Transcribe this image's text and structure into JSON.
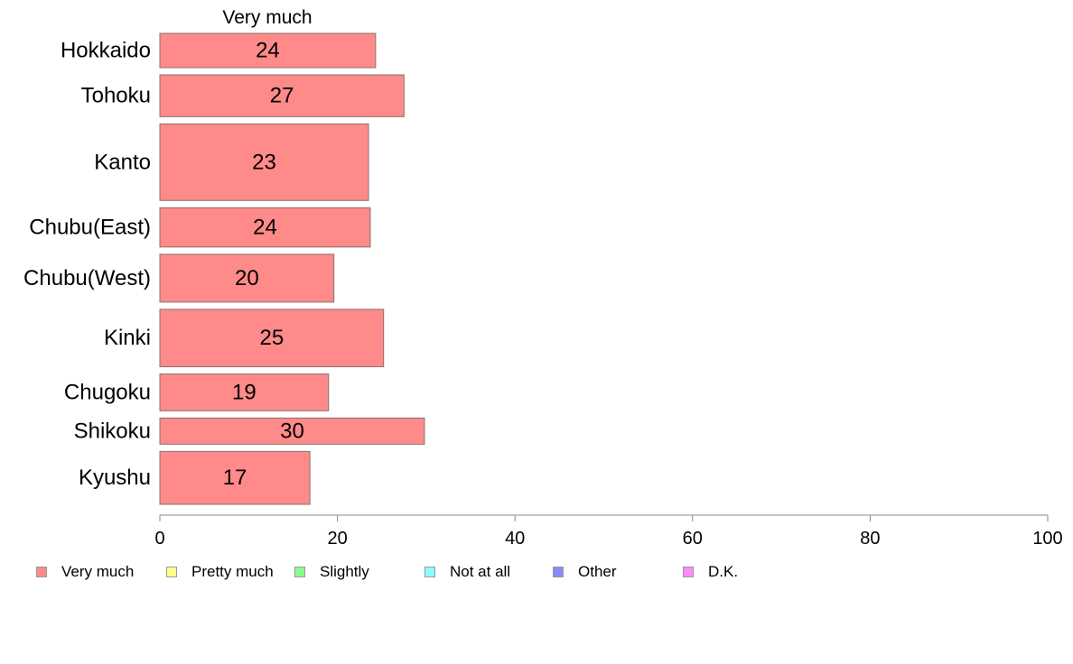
{
  "chart_data": {
    "type": "bar",
    "orientation": "horizontal",
    "title": "Very much",
    "categories": [
      "Hokkaido",
      "Tohoku",
      "Kanto",
      "Chubu(East)",
      "Chubu(West)",
      "Kinki",
      "Chugoku",
      "Shikoku",
      "Kyushu"
    ],
    "series": [
      {
        "name": "Very much",
        "color": "#ff8a8a",
        "values": [
          24.3,
          27.5,
          23.5,
          23.7,
          19.6,
          25.2,
          19.0,
          29.8,
          16.9
        ],
        "labels": [
          "24",
          "27",
          "23",
          "24",
          "20",
          "25",
          "19",
          "30",
          "17"
        ]
      }
    ],
    "bar_weights": [
      0.68,
      0.83,
      1.52,
      0.78,
      0.95,
      1.14,
      0.73,
      0.52,
      1.05
    ],
    "xlim": [
      0,
      100
    ],
    "xticks": [
      "0",
      "20",
      "40",
      "60",
      "80",
      "100"
    ],
    "xlabel": "",
    "ylabel": "",
    "grid": false,
    "legend": {
      "placement": "bottom",
      "items": [
        {
          "label": "Very much",
          "color": "#ff8a8a"
        },
        {
          "label": "Pretty much",
          "color": "#ffff8a"
        },
        {
          "label": "Slightly",
          "color": "#8aff8a"
        },
        {
          "label": "Not at all",
          "color": "#8affff"
        },
        {
          "label": "Other",
          "color": "#8a8aff"
        },
        {
          "label": "D.K.",
          "color": "#ff8aff"
        }
      ]
    }
  }
}
